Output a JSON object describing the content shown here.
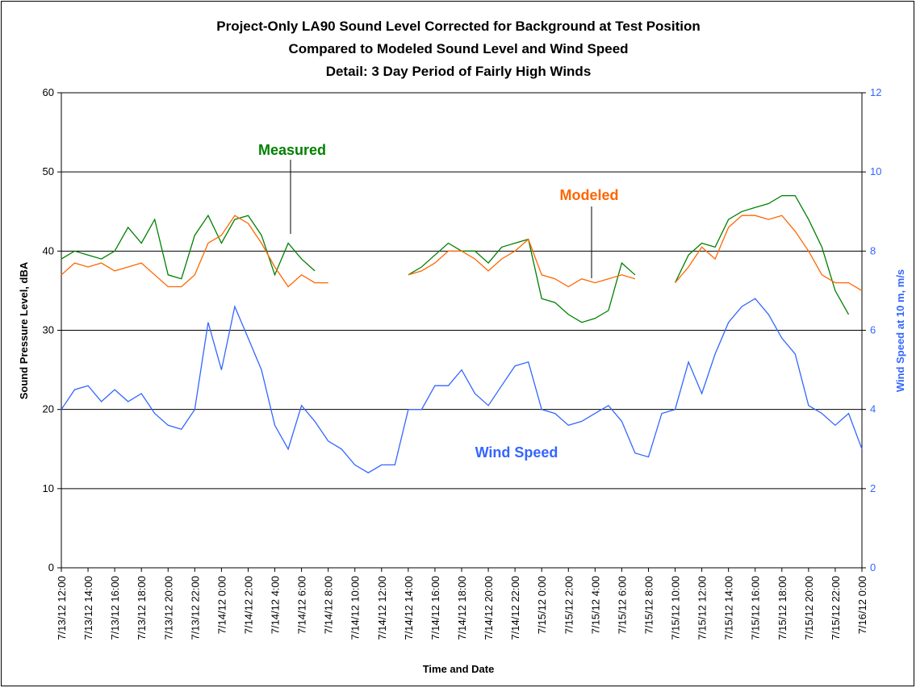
{
  "chart_data": {
    "type": "line",
    "title": "Project-Only LA90 Sound Level Corrected for Background at Test Position",
    "subtitle": "Compared to Modeled Sound Level and Wind Speed",
    "subtitle2": "Detail:  3 Day Period of Fairly High Winds",
    "x_label": "Time and Date",
    "y_label": "Sound Pressure Level, dBA",
    "y2_label": "Wind Speed at 10 m, m/s",
    "annotations": [
      "Measured",
      "Modeled",
      "Wind Speed"
    ],
    "grid": true,
    "x": [
      "7/13/12 12:00",
      "7/13/12 13:00",
      "7/13/12 14:00",
      "7/13/12 15:00",
      "7/13/12 16:00",
      "7/13/12 17:00",
      "7/13/12 18:00",
      "7/13/12 19:00",
      "7/13/12 20:00",
      "7/13/12 21:00",
      "7/13/12 22:00",
      "7/13/12 23:00",
      "7/14/12 0:00",
      "7/14/12 1:00",
      "7/14/12 2:00",
      "7/14/12 3:00",
      "7/14/12 4:00",
      "7/14/12 5:00",
      "7/14/12 6:00",
      "7/14/12 7:00",
      "7/14/12 8:00",
      "7/14/12 9:00",
      "7/14/12 10:00",
      "7/14/12 11:00",
      "7/14/12 12:00",
      "7/14/12 13:00",
      "7/14/12 14:00",
      "7/14/12 15:00",
      "7/14/12 16:00",
      "7/14/12 17:00",
      "7/14/12 18:00",
      "7/14/12 19:00",
      "7/14/12 20:00",
      "7/14/12 21:00",
      "7/14/12 22:00",
      "7/14/12 23:00",
      "7/15/12 0:00",
      "7/15/12 1:00",
      "7/15/12 2:00",
      "7/15/12 3:00",
      "7/15/12 4:00",
      "7/15/12 5:00",
      "7/15/12 6:00",
      "7/15/12 7:00",
      "7/15/12 8:00",
      "7/15/12 9:00",
      "7/15/12 10:00",
      "7/15/12 11:00",
      "7/15/12 12:00",
      "7/15/12 13:00",
      "7/15/12 14:00",
      "7/15/12 15:00",
      "7/15/12 16:00",
      "7/15/12 17:00",
      "7/15/12 18:00",
      "7/15/12 19:00",
      "7/15/12 20:00",
      "7/15/12 21:00",
      "7/15/12 22:00",
      "7/15/12 23:00",
      "7/16/12 0:00"
    ],
    "xlim": [
      "7/13/12 12:00",
      "7/16/12 0:00"
    ],
    "xticks": [
      "7/13/12 12:00",
      "7/13/12 14:00",
      "7/13/12 16:00",
      "7/13/12 18:00",
      "7/13/12 20:00",
      "7/13/12 22:00",
      "7/14/12 0:00",
      "7/14/12 2:00",
      "7/14/12 4:00",
      "7/14/12 6:00",
      "7/14/12 8:00",
      "7/14/12 10:00",
      "7/14/12 12:00",
      "7/14/12 14:00",
      "7/14/12 16:00",
      "7/14/12 18:00",
      "7/14/12 20:00",
      "7/14/12 22:00",
      "7/15/12 0:00",
      "7/15/12 2:00",
      "7/15/12 4:00",
      "7/15/12 6:00",
      "7/15/12 8:00",
      "7/15/12 10:00",
      "7/15/12 12:00",
      "7/15/12 14:00",
      "7/15/12 16:00",
      "7/15/12 18:00",
      "7/15/12 20:00",
      "7/15/12 22:00",
      "7/16/12 0:00"
    ],
    "ylim": [
      0,
      60
    ],
    "yticks": [
      0,
      10,
      20,
      30,
      40,
      50,
      60
    ],
    "y2lim": [
      0,
      12
    ],
    "y2ticks": [
      0,
      2,
      4,
      6,
      8,
      10,
      12
    ],
    "series": [
      {
        "name": "Measured",
        "color": "#008000",
        "values": [
          39,
          40,
          39.5,
          39,
          40,
          43,
          41,
          44,
          37,
          36.5,
          42,
          44.5,
          41,
          44,
          44.5,
          42,
          37,
          41,
          39,
          37.5,
          null,
          null,
          null,
          null,
          null,
          null,
          37,
          38,
          39.5,
          41,
          40,
          40,
          38.5,
          40.5,
          41,
          41.5,
          34,
          33.5,
          32,
          31,
          31.5,
          32.5,
          38.5,
          37,
          null,
          null,
          36,
          39.5,
          41,
          40.5,
          44,
          45,
          45.5,
          46,
          47,
          47,
          44,
          40.5,
          35,
          32,
          null
        ]
      },
      {
        "name": "Modeled",
        "color": "#ff6600",
        "values": [
          37,
          38.5,
          38,
          38.5,
          37.5,
          38,
          38.5,
          37,
          35.5,
          35.5,
          37,
          41,
          42,
          44.5,
          43.5,
          41,
          38,
          35.5,
          37,
          36,
          36,
          null,
          null,
          35.5,
          null,
          null,
          37,
          37.5,
          38.5,
          40,
          40,
          39,
          37.5,
          39,
          40,
          41.5,
          37,
          36.5,
          35.5,
          36.5,
          36,
          36.5,
          37,
          36.5,
          null,
          null,
          36,
          38,
          40.5,
          39,
          43,
          44.5,
          44.5,
          44,
          44.5,
          42.5,
          40,
          37,
          36,
          36,
          35
        ]
      },
      {
        "name": "Wind Speed",
        "color": "#3366ff",
        "axis": "y2",
        "values": [
          4,
          4.5,
          4.6,
          4.2,
          4.5,
          4.2,
          4.4,
          3.9,
          3.6,
          3.5,
          4,
          6.2,
          5,
          6.6,
          5.8,
          5,
          3.6,
          3,
          4.1,
          3.7,
          3.2,
          3,
          2.6,
          2.4,
          2.6,
          2.6,
          4,
          4,
          4.6,
          4.6,
          5,
          4.4,
          4.1,
          4.6,
          5.1,
          5.2,
          4,
          3.9,
          3.6,
          3.7,
          3.9,
          4.1,
          3.7,
          2.9,
          2.8,
          3.9,
          4,
          5.2,
          4.4,
          5.4,
          6.2,
          6.6,
          6.8,
          6.4,
          5.8,
          5.4,
          4.1,
          3.9,
          3.6,
          3.9,
          3
        ]
      }
    ]
  }
}
